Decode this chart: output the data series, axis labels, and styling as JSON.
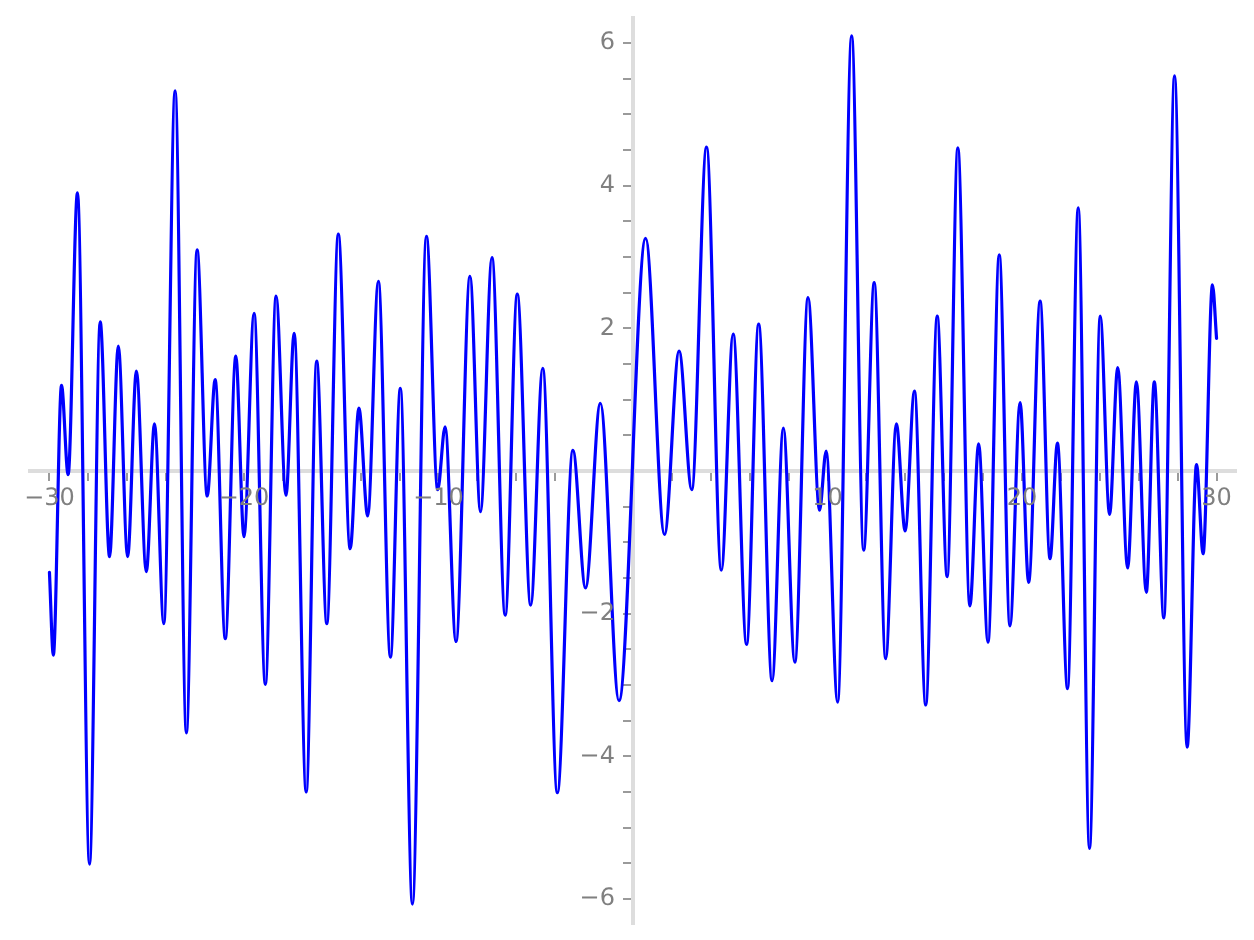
{
  "chart_data": {
    "type": "line",
    "color": "#0000ff",
    "xlim": [
      -31,
      31
    ],
    "ylim": [
      -6.35,
      6.35
    ],
    "xticks": [
      {
        "value": -30,
        "label": "−30"
      },
      {
        "value": -28,
        "label": null
      },
      {
        "value": -26,
        "label": null
      },
      {
        "value": -24,
        "label": null
      },
      {
        "value": -22,
        "label": null
      },
      {
        "value": -20,
        "label": "−20"
      },
      {
        "value": -18,
        "label": null
      },
      {
        "value": -16,
        "label": null
      },
      {
        "value": -14,
        "label": null
      },
      {
        "value": -12,
        "label": null
      },
      {
        "value": -10,
        "label": "−10"
      },
      {
        "value": -8,
        "label": null
      },
      {
        "value": -6,
        "label": null
      },
      {
        "value": -4,
        "label": null
      },
      {
        "value": -2,
        "label": null
      },
      {
        "value": 2,
        "label": null
      },
      {
        "value": 4,
        "label": null
      },
      {
        "value": 6,
        "label": null
      },
      {
        "value": 8,
        "label": null
      },
      10,
      {
        "value": 12,
        "label": null
      },
      {
        "value": 14,
        "label": null
      },
      {
        "value": 16,
        "label": null
      },
      {
        "value": 18,
        "label": null
      },
      20,
      {
        "value": 22,
        "label": null
      },
      {
        "value": 24,
        "label": null
      },
      {
        "value": 26,
        "label": null
      },
      {
        "value": 28,
        "label": null
      },
      30
    ],
    "yticks": [
      {
        "value": -6,
        "label": "−6"
      },
      {
        "value": -5.5,
        "label": null
      },
      {
        "value": -5,
        "label": null
      },
      {
        "value": -4.5,
        "label": null
      },
      {
        "value": -4,
        "label": "−4"
      },
      {
        "value": -3.5,
        "label": null
      },
      {
        "value": -3,
        "label": null
      },
      {
        "value": -2.5,
        "label": null
      },
      {
        "value": -2,
        "label": "−2"
      },
      {
        "value": -1.5,
        "label": null
      },
      {
        "value": -1,
        "label": null
      },
      {
        "value": -0.5,
        "label": null
      },
      {
        "value": 0.5,
        "label": null
      },
      {
        "value": 1,
        "label": null
      },
      {
        "value": 1.5,
        "label": null
      },
      2,
      {
        "value": 2.5,
        "label": null
      },
      {
        "value": 3,
        "label": null
      },
      {
        "value": 3.5,
        "label": null
      },
      4,
      {
        "value": 4.5,
        "label": null
      },
      {
        "value": 5,
        "label": null
      },
      {
        "value": 5.5,
        "label": null
      },
      6
    ],
    "x": [
      -30,
      -29.8,
      -29.38,
      -29.04,
      -28.56,
      -27.94,
      -27.39,
      -26.91,
      -26.46,
      -25.98,
      -25.53,
      -25.02,
      -24.6,
      -24.12,
      -23.54,
      -22.96,
      -22.41,
      -21.89,
      -21.48,
      -20.96,
      -20.42,
      -20.0,
      -19.48,
      -18.9,
      -18.35,
      -17.84,
      -17.42,
      -16.8,
      -16.26,
      -15.74,
      -15.15,
      -14.54,
      -14.09,
      -13.64,
      -13.09,
      -12.47,
      -11.96,
      -11.34,
      -10.62,
      -10.04,
      -9.66,
      -9.1,
      -8.38,
      -7.84,
      -7.25,
      -6.57,
      -5.95,
      -5.26,
      -4.64,
      -3.89,
      -3.09,
      -2.44,
      -1.68,
      -0.72,
      0.65,
      1.62,
      2.37,
      3.02,
      3.78,
      4.54,
      5.15,
      5.84,
      6.46,
      7.15,
      7.73,
      8.32,
      9.0,
      9.59,
      9.93,
      10.52,
      11.24,
      11.86,
      12.4,
      12.99,
      13.54,
      13.99,
      14.47,
      15.05,
      15.64,
      16.15,
      16.7,
      17.32,
      17.77,
      18.25,
      18.83,
      19.38,
      19.9,
      20.34,
      20.93,
      21.44,
      21.82,
      22.34,
      22.89,
      23.47,
      24.02,
      24.5,
      24.92,
      25.43,
      25.88,
      26.39,
      26.8,
      27.29,
      27.84,
      28.49,
      28.97,
      29.31,
      29.79,
      30
    ],
    "values": [
      -1.42,
      -2.58,
      1.2,
      -0.05,
      3.9,
      -5.51,
      2.09,
      -1.2,
      1.75,
      -1.2,
      1.4,
      -1.41,
      0.66,
      -2.14,
      5.33,
      -3.67,
      3.1,
      -0.35,
      1.28,
      -2.35,
      1.61,
      -0.92,
      2.21,
      -2.99,
      2.45,
      -0.34,
      1.93,
      -4.5,
      1.54,
      -2.14,
      3.32,
      -1.09,
      0.88,
      -0.63,
      2.66,
      -2.61,
      1.16,
      -6.07,
      3.29,
      -0.26,
      0.62,
      -2.39,
      2.73,
      -0.57,
      2.99,
      -2.02,
      2.48,
      -1.88,
      1.44,
      -4.51,
      0.29,
      -1.64,
      0.95,
      -3.22,
      3.26,
      -0.89,
      1.68,
      -0.26,
      4.54,
      -1.39,
      1.92,
      -2.43,
      2.06,
      -2.94,
      0.6,
      -2.68,
      2.43,
      -0.55,
      0.28,
      -3.24,
      6.1,
      -1.11,
      2.64,
      -2.63,
      0.66,
      -0.84,
      1.12,
      -3.28,
      2.17,
      -1.48,
      4.53,
      -1.89,
      0.38,
      -2.4,
      3.03,
      -2.17,
      0.96,
      -1.56,
      2.38,
      -1.23,
      0.39,
      -3.05,
      3.69,
      -5.29,
      2.17,
      -0.61,
      1.45,
      -1.36,
      1.25,
      -1.7,
      1.25,
      -2.06,
      5.54,
      -3.87,
      0.09,
      -1.16,
      2.61,
      1.86
    ]
  }
}
